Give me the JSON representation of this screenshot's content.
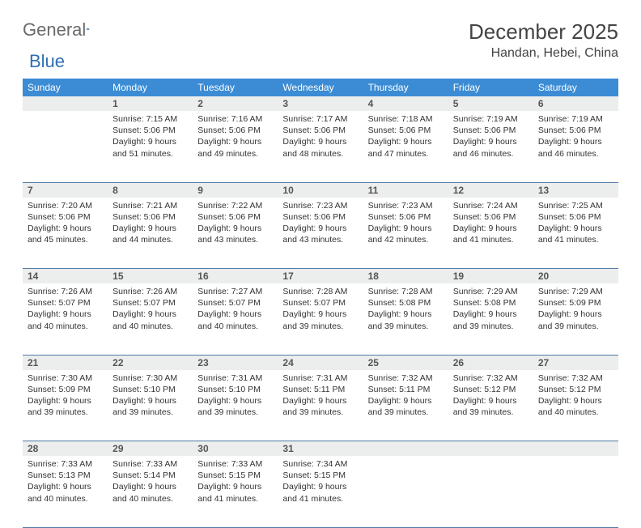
{
  "logo": {
    "text1": "General",
    "text2": "Blue"
  },
  "title": "December 2025",
  "subtitle": "Handan, Hebei, China",
  "colors": {
    "header_bg": "#3b8cd4",
    "header_text": "#ffffff",
    "daynum_bg": "#eceded",
    "border": "#4f7aa8",
    "text": "#333333",
    "logo_gray": "#6a6a6a",
    "logo_blue": "#2f6fb3"
  },
  "day_headers": [
    "Sunday",
    "Monday",
    "Tuesday",
    "Wednesday",
    "Thursday",
    "Friday",
    "Saturday"
  ],
  "weeks": [
    [
      null,
      {
        "n": "1",
        "sr": "7:15 AM",
        "ss": "5:06 PM",
        "dl": "9 hours and 51 minutes."
      },
      {
        "n": "2",
        "sr": "7:16 AM",
        "ss": "5:06 PM",
        "dl": "9 hours and 49 minutes."
      },
      {
        "n": "3",
        "sr": "7:17 AM",
        "ss": "5:06 PM",
        "dl": "9 hours and 48 minutes."
      },
      {
        "n": "4",
        "sr": "7:18 AM",
        "ss": "5:06 PM",
        "dl": "9 hours and 47 minutes."
      },
      {
        "n": "5",
        "sr": "7:19 AM",
        "ss": "5:06 PM",
        "dl": "9 hours and 46 minutes."
      },
      {
        "n": "6",
        "sr": "7:19 AM",
        "ss": "5:06 PM",
        "dl": "9 hours and 46 minutes."
      }
    ],
    [
      {
        "n": "7",
        "sr": "7:20 AM",
        "ss": "5:06 PM",
        "dl": "9 hours and 45 minutes."
      },
      {
        "n": "8",
        "sr": "7:21 AM",
        "ss": "5:06 PM",
        "dl": "9 hours and 44 minutes."
      },
      {
        "n": "9",
        "sr": "7:22 AM",
        "ss": "5:06 PM",
        "dl": "9 hours and 43 minutes."
      },
      {
        "n": "10",
        "sr": "7:23 AM",
        "ss": "5:06 PM",
        "dl": "9 hours and 43 minutes."
      },
      {
        "n": "11",
        "sr": "7:23 AM",
        "ss": "5:06 PM",
        "dl": "9 hours and 42 minutes."
      },
      {
        "n": "12",
        "sr": "7:24 AM",
        "ss": "5:06 PM",
        "dl": "9 hours and 41 minutes."
      },
      {
        "n": "13",
        "sr": "7:25 AM",
        "ss": "5:06 PM",
        "dl": "9 hours and 41 minutes."
      }
    ],
    [
      {
        "n": "14",
        "sr": "7:26 AM",
        "ss": "5:07 PM",
        "dl": "9 hours and 40 minutes."
      },
      {
        "n": "15",
        "sr": "7:26 AM",
        "ss": "5:07 PM",
        "dl": "9 hours and 40 minutes."
      },
      {
        "n": "16",
        "sr": "7:27 AM",
        "ss": "5:07 PM",
        "dl": "9 hours and 40 minutes."
      },
      {
        "n": "17",
        "sr": "7:28 AM",
        "ss": "5:07 PM",
        "dl": "9 hours and 39 minutes."
      },
      {
        "n": "18",
        "sr": "7:28 AM",
        "ss": "5:08 PM",
        "dl": "9 hours and 39 minutes."
      },
      {
        "n": "19",
        "sr": "7:29 AM",
        "ss": "5:08 PM",
        "dl": "9 hours and 39 minutes."
      },
      {
        "n": "20",
        "sr": "7:29 AM",
        "ss": "5:09 PM",
        "dl": "9 hours and 39 minutes."
      }
    ],
    [
      {
        "n": "21",
        "sr": "7:30 AM",
        "ss": "5:09 PM",
        "dl": "9 hours and 39 minutes."
      },
      {
        "n": "22",
        "sr": "7:30 AM",
        "ss": "5:10 PM",
        "dl": "9 hours and 39 minutes."
      },
      {
        "n": "23",
        "sr": "7:31 AM",
        "ss": "5:10 PM",
        "dl": "9 hours and 39 minutes."
      },
      {
        "n": "24",
        "sr": "7:31 AM",
        "ss": "5:11 PM",
        "dl": "9 hours and 39 minutes."
      },
      {
        "n": "25",
        "sr": "7:32 AM",
        "ss": "5:11 PM",
        "dl": "9 hours and 39 minutes."
      },
      {
        "n": "26",
        "sr": "7:32 AM",
        "ss": "5:12 PM",
        "dl": "9 hours and 39 minutes."
      },
      {
        "n": "27",
        "sr": "7:32 AM",
        "ss": "5:12 PM",
        "dl": "9 hours and 40 minutes."
      }
    ],
    [
      {
        "n": "28",
        "sr": "7:33 AM",
        "ss": "5:13 PM",
        "dl": "9 hours and 40 minutes."
      },
      {
        "n": "29",
        "sr": "7:33 AM",
        "ss": "5:14 PM",
        "dl": "9 hours and 40 minutes."
      },
      {
        "n": "30",
        "sr": "7:33 AM",
        "ss": "5:15 PM",
        "dl": "9 hours and 41 minutes."
      },
      {
        "n": "31",
        "sr": "7:34 AM",
        "ss": "5:15 PM",
        "dl": "9 hours and 41 minutes."
      },
      null,
      null,
      null
    ]
  ],
  "labels": {
    "sunrise": "Sunrise:",
    "sunset": "Sunset:",
    "daylight": "Daylight:"
  }
}
